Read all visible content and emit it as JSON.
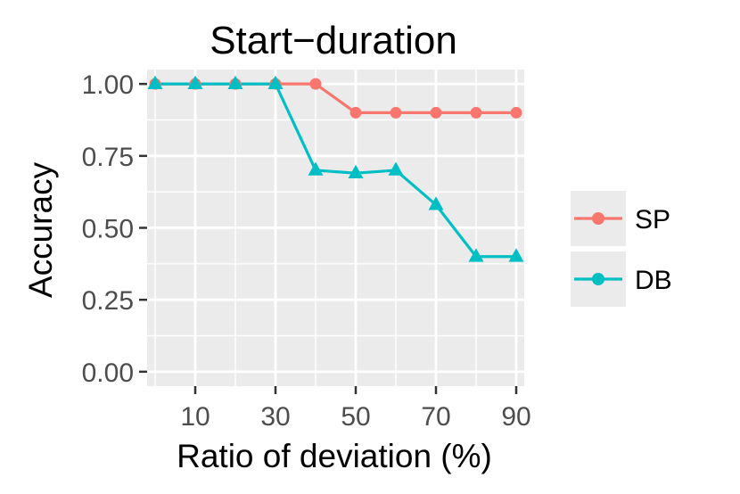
{
  "chart_data": {
    "type": "line",
    "title": "Start−duration",
    "xlabel": "Ratio of deviation (%)",
    "ylabel": "Accuracy",
    "x": [
      0,
      10,
      20,
      30,
      40,
      50,
      60,
      70,
      80,
      90
    ],
    "xlim": [
      -2,
      92
    ],
    "ylim": [
      -0.05,
      1.05
    ],
    "x_ticks": [
      10,
      30,
      50,
      70,
      90
    ],
    "x_minor": [
      0,
      20,
      40,
      60,
      80
    ],
    "y_ticks": [
      0,
      0.25,
      0.5,
      0.75,
      1.0
    ],
    "y_tick_labels": [
      "0.00",
      "0.25",
      "0.50",
      "0.75",
      "1.00"
    ],
    "x_tick_labels": [
      "10",
      "30",
      "50",
      "70",
      "90"
    ],
    "grid": true,
    "legend_position": "right",
    "series": [
      {
        "name": "SP",
        "color": "#F8766D",
        "marker": "circle",
        "values": [
          1.0,
          1.0,
          1.0,
          1.0,
          1.0,
          0.9,
          0.9,
          0.9,
          0.9,
          0.9
        ]
      },
      {
        "name": "DB",
        "color": "#00BFC4",
        "marker": "triangle",
        "values": [
          1.0,
          1.0,
          1.0,
          1.0,
          0.7,
          0.69,
          0.7,
          0.58,
          0.4,
          0.4
        ]
      }
    ]
  }
}
